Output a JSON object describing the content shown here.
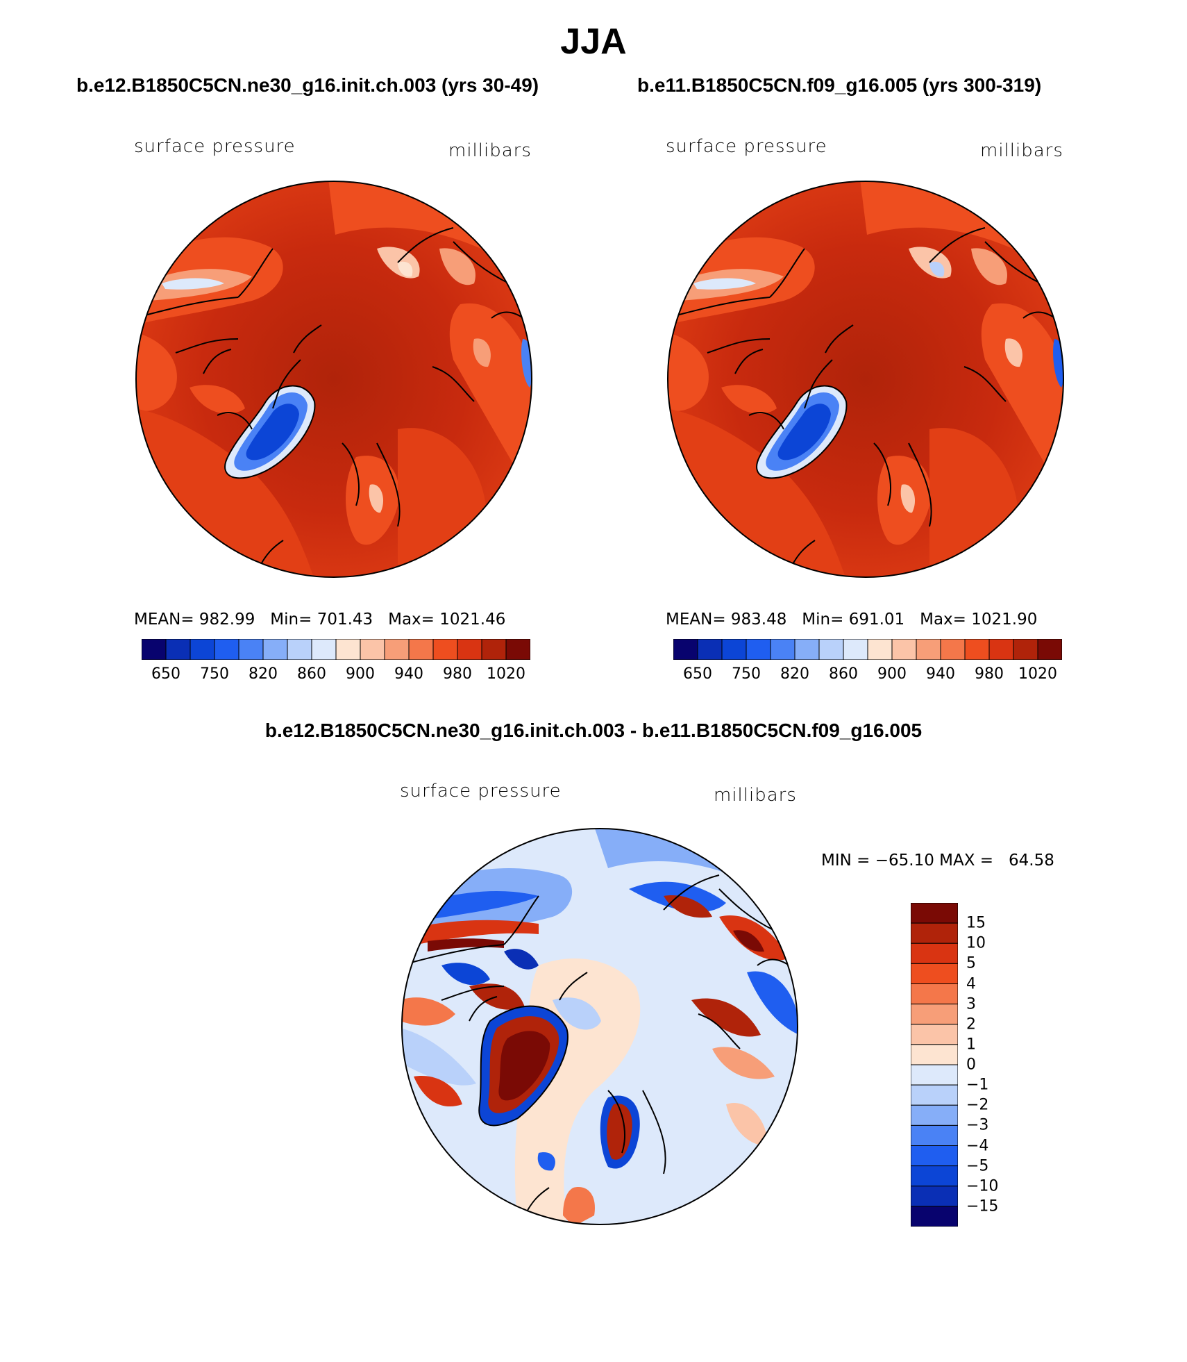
{
  "title": "JJA",
  "panels": [
    {
      "case": "b.e12.B1850C5CN.ne30_g16.init.ch.003 (yrs 30-49)",
      "variable": "surface pressure",
      "units": "millibars",
      "stats": "MEAN= 982.99   Min= 701.43   Max= 1021.46",
      "mean": 982.99,
      "min": 701.43,
      "max": 1021.46
    },
    {
      "case": "b.e11.B1850C5CN.f09_g16.005 (yrs 300-319)",
      "variable": "surface pressure",
      "units": "millibars",
      "stats": "MEAN= 983.48   Min= 691.01   Max= 1021.90",
      "mean": 983.48,
      "min": 691.01,
      "max": 1021.9
    }
  ],
  "colorbar_top": {
    "labels": [
      "650",
      "750",
      "820",
      "860",
      "900",
      "940",
      "980",
      "1020"
    ],
    "colors": [
      "#08036e",
      "#0a2fb5",
      "#0c45d6",
      "#1f5ef0",
      "#4a82f5",
      "#86aef8",
      "#b9d1fa",
      "#dde9fb",
      "#fde4d1",
      "#fbc4a8",
      "#f79e78",
      "#f4774a",
      "#ee4e1f",
      "#d93412",
      "#b0230a",
      "#7a0a05"
    ]
  },
  "difference": {
    "title": "b.e12.B1850C5CN.ne30_g16.init.ch.003 - b.e11.B1850C5CN.f09_g16.005",
    "variable": "surface pressure",
    "units": "millibars",
    "minmax": "MIN = −65.10 MAX =   64.58",
    "min": -65.1,
    "max": 64.58
  },
  "colorbar_diff": {
    "labels": [
      "15",
      "10",
      "5",
      "4",
      "3",
      "2",
      "1",
      "0",
      "−1",
      "−2",
      "−3",
      "−4",
      "−5",
      "−10",
      "−15"
    ],
    "colors": [
      "#7a0a05",
      "#b0230a",
      "#d93412",
      "#ee4e1f",
      "#f4774a",
      "#f79e78",
      "#fbc4a8",
      "#fde4d1",
      "#dde9fb",
      "#b9d1fa",
      "#86aef8",
      "#4a82f5",
      "#1f5ef0",
      "#0c45d6",
      "#0a2fb5",
      "#08036e"
    ]
  }
}
